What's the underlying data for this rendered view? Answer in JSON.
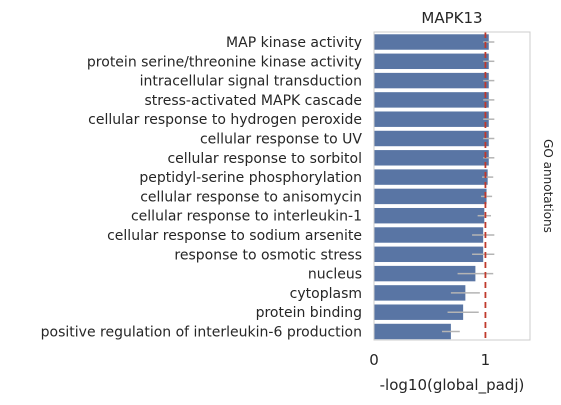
{
  "chart_data": {
    "type": "bar",
    "orientation": "horizontal",
    "title": "MAPK13",
    "xlabel": "-log10(global_padj)",
    "ylabel": "",
    "right_label": "GO annotations",
    "xlim": [
      0,
      1.4
    ],
    "xticks": [
      0,
      1
    ],
    "xtick_labels": [
      "0",
      "1"
    ],
    "grid": false,
    "bar_color": "#5975a4",
    "errorbar_color": "#b4b4b4",
    "threshold_line": {
      "value": 1,
      "color": "#c0392b",
      "style": "dashed"
    },
    "categories": [
      "MAP kinase activity",
      "protein serine/threonine kinase activity",
      "intracellular signal transduction",
      "stress-activated MAPK cascade",
      "cellular response to hydrogen peroxide",
      "cellular response to UV",
      "cellular response to sorbitol",
      "peptidyl-serine phosphorylation",
      "cellular response to anisomycin",
      "cellular response to interleukin-1",
      "cellular response to sodium arsenite",
      "response to osmotic stress",
      "nucleus",
      "cytoplasm",
      "protein binding",
      "positive regulation of interleukin-6 production"
    ],
    "values": [
      1.03,
      1.03,
      1.03,
      1.03,
      1.03,
      1.03,
      1.03,
      1.02,
      1.01,
      0.99,
      0.98,
      0.98,
      0.91,
      0.82,
      0.8,
      0.69
    ],
    "errors": [
      0.05,
      0.05,
      0.05,
      0.05,
      0.05,
      0.05,
      0.05,
      0.05,
      0.05,
      0.06,
      0.1,
      0.1,
      0.16,
      0.13,
      0.14,
      0.08
    ]
  }
}
